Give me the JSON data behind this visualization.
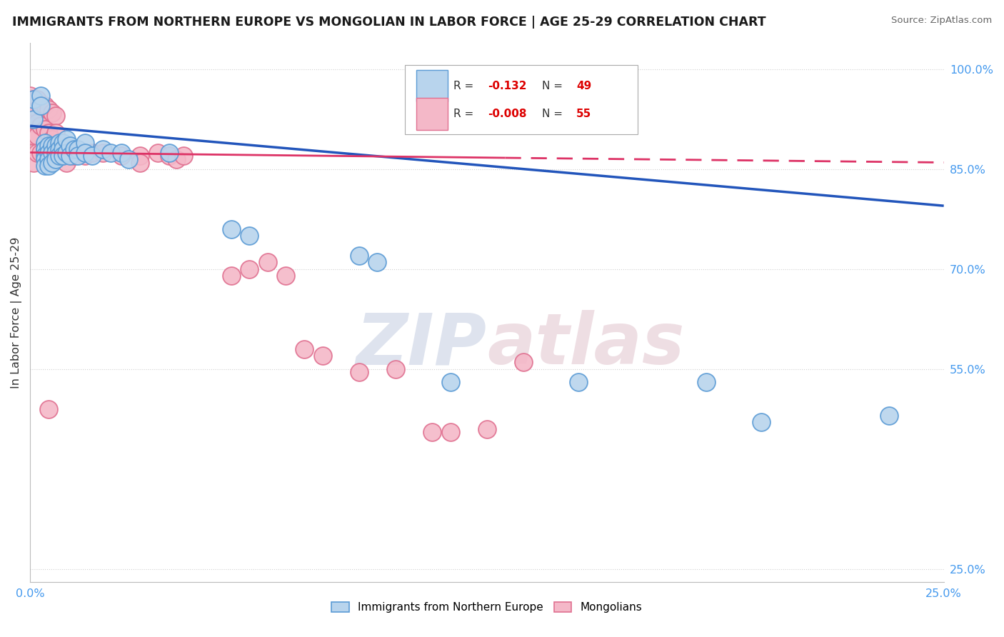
{
  "title": "IMMIGRANTS FROM NORTHERN EUROPE VS MONGOLIAN IN LABOR FORCE | AGE 25-29 CORRELATION CHART",
  "source": "Source: ZipAtlas.com",
  "ylabel": "In Labor Force | Age 25-29",
  "xlim": [
    0.0,
    0.25
  ],
  "ylim": [
    0.23,
    1.04
  ],
  "ytick_values": [
    0.25,
    0.55,
    0.7,
    0.85,
    1.0
  ],
  "xtick_values": [
    0.0,
    0.05,
    0.1,
    0.15,
    0.2,
    0.25
  ],
  "legend_labels": [
    "Immigrants from Northern Europe",
    "Mongolians"
  ],
  "blue_R": -0.132,
  "blue_N": 49,
  "pink_R": -0.008,
  "pink_N": 55,
  "blue_color": "#b8d4ed",
  "blue_edge": "#5b9bd5",
  "pink_color": "#f4b8c8",
  "pink_edge": "#e07090",
  "blue_line_color": "#2255bb",
  "pink_line_color": "#dd3366",
  "watermark_color": "#d0d8e8",
  "watermark_pink": "#e8d0d8",
  "background_color": "#ffffff",
  "grid_color": "#d0d0d0",
  "blue_scatter_x": [
    0.001,
    0.001,
    0.003,
    0.003,
    0.004,
    0.004,
    0.004,
    0.004,
    0.004,
    0.005,
    0.005,
    0.005,
    0.005,
    0.006,
    0.006,
    0.006,
    0.007,
    0.007,
    0.007,
    0.008,
    0.008,
    0.008,
    0.009,
    0.009,
    0.009,
    0.01,
    0.01,
    0.011,
    0.011,
    0.012,
    0.013,
    0.013,
    0.015,
    0.015,
    0.017,
    0.02,
    0.022,
    0.025,
    0.027,
    0.038,
    0.055,
    0.06,
    0.09,
    0.095,
    0.115,
    0.15,
    0.185,
    0.2,
    0.235
  ],
  "blue_scatter_y": [
    0.955,
    0.925,
    0.96,
    0.945,
    0.89,
    0.88,
    0.87,
    0.865,
    0.855,
    0.885,
    0.875,
    0.865,
    0.855,
    0.885,
    0.875,
    0.86,
    0.885,
    0.875,
    0.865,
    0.89,
    0.88,
    0.87,
    0.89,
    0.88,
    0.87,
    0.895,
    0.875,
    0.885,
    0.87,
    0.88,
    0.88,
    0.87,
    0.89,
    0.875,
    0.87,
    0.88,
    0.875,
    0.875,
    0.865,
    0.875,
    0.76,
    0.75,
    0.72,
    0.71,
    0.53,
    0.53,
    0.53,
    0.47,
    0.48
  ],
  "pink_scatter_x": [
    0.0,
    0.0,
    0.0,
    0.001,
    0.001,
    0.001,
    0.001,
    0.001,
    0.002,
    0.002,
    0.002,
    0.002,
    0.002,
    0.003,
    0.003,
    0.003,
    0.004,
    0.004,
    0.004,
    0.005,
    0.005,
    0.005,
    0.006,
    0.006,
    0.007,
    0.007,
    0.007,
    0.008,
    0.009,
    0.01,
    0.01,
    0.012,
    0.015,
    0.017,
    0.02,
    0.025,
    0.03,
    0.03,
    0.035,
    0.038,
    0.04,
    0.042,
    0.055,
    0.06,
    0.065,
    0.07,
    0.075,
    0.08,
    0.09,
    0.1,
    0.11,
    0.115,
    0.125,
    0.135,
    0.005
  ],
  "pink_scatter_y": [
    0.96,
    0.94,
    0.9,
    0.955,
    0.94,
    0.92,
    0.9,
    0.86,
    0.955,
    0.94,
    0.92,
    0.9,
    0.875,
    0.945,
    0.915,
    0.875,
    0.945,
    0.91,
    0.88,
    0.94,
    0.905,
    0.87,
    0.935,
    0.895,
    0.93,
    0.905,
    0.87,
    0.875,
    0.87,
    0.88,
    0.86,
    0.87,
    0.87,
    0.875,
    0.875,
    0.87,
    0.87,
    0.86,
    0.875,
    0.87,
    0.865,
    0.87,
    0.69,
    0.7,
    0.71,
    0.69,
    0.58,
    0.57,
    0.545,
    0.55,
    0.455,
    0.455,
    0.46,
    0.56,
    0.49
  ]
}
